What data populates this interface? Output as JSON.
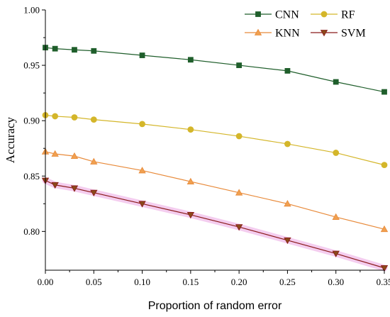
{
  "chart_data": {
    "type": "line",
    "title": "",
    "xlabel": "Proportion of random error",
    "ylabel": "Accuracy",
    "xlim": [
      0.0,
      0.35
    ],
    "ylim": [
      0.765,
      1.0
    ],
    "xticks": [
      0.0,
      0.05,
      0.1,
      0.15,
      0.2,
      0.25,
      0.3,
      0.35
    ],
    "xtick_labels": [
      "0.00",
      "0.05",
      "0.10",
      "0.15",
      "0.20",
      "0.25",
      "0.30",
      "0.35"
    ],
    "yticks": [
      0.8,
      0.85,
      0.9,
      0.95,
      1.0
    ],
    "ytick_labels": [
      "0.80",
      "0.85",
      "0.90",
      "0.95",
      "1.00"
    ],
    "grid": false,
    "legend_position": "top-right",
    "x": [
      0.0,
      0.01,
      0.03,
      0.05,
      0.1,
      0.15,
      0.2,
      0.25,
      0.3,
      0.35
    ],
    "series": [
      {
        "name": "CNN",
        "marker": "square",
        "color": "#1f5e2b",
        "marker_color": "#1f5e2b",
        "values": [
          0.966,
          0.965,
          0.964,
          0.963,
          0.959,
          0.955,
          0.95,
          0.945,
          0.935,
          0.926
        ]
      },
      {
        "name": "RF",
        "marker": "circle",
        "color": "#d4b62a",
        "marker_color": "#d4b62a",
        "values": [
          0.905,
          0.904,
          0.903,
          0.901,
          0.897,
          0.892,
          0.886,
          0.879,
          0.871,
          0.86
        ]
      },
      {
        "name": "KNN",
        "marker": "triangle-up",
        "color": "#e88a3a",
        "marker_color": "#f0a050",
        "values": [
          0.872,
          0.87,
          0.868,
          0.863,
          0.855,
          0.845,
          0.835,
          0.825,
          0.813,
          0.802
        ]
      },
      {
        "name": "SVM",
        "marker": "triangle-down",
        "color": "#8a1a1a",
        "marker_color": "#8a4a1a",
        "band_color": "#f0b8e8",
        "values": [
          0.846,
          0.842,
          0.839,
          0.835,
          0.825,
          0.815,
          0.804,
          0.792,
          0.78,
          0.767
        ]
      }
    ],
    "legend_order": [
      "CNN",
      "RF",
      "KNN",
      "SVM"
    ]
  }
}
